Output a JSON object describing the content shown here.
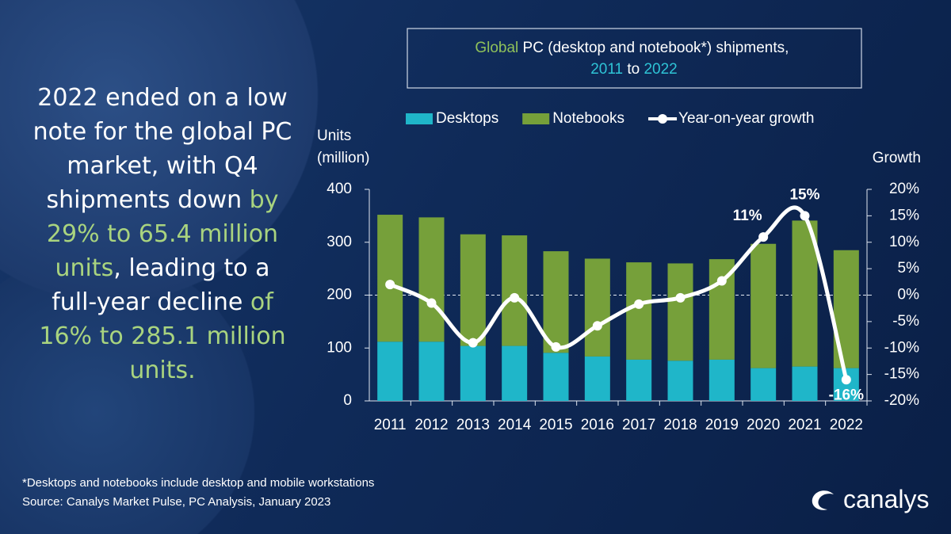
{
  "headline": [
    {
      "text": "2022 ended on a low note for the global PC market, with Q4 shipments down ",
      "color": "#ffffff"
    },
    {
      "text": "by 29% to 65.4 million units",
      "color": "#a9d47f"
    },
    {
      "text": ", leading to a full-year decline ",
      "color": "#ffffff"
    },
    {
      "text": "of 16% to 285.1 million units.",
      "color": "#a9d47f"
    }
  ],
  "footnotes": [
    "*Desktops and notebooks include desktop and mobile workstations",
    "Source: Canalys Market Pulse, PC Analysis, January 2023"
  ],
  "logo": "canalys",
  "chart_data": {
    "type": "stacked-bar-line",
    "title": [
      {
        "text": "Global",
        "color": "#8fc15a"
      },
      {
        "text": " PC (desktop and notebook*) shipments, ",
        "color": "#ffffff"
      },
      {
        "text": "2011",
        "color": "#2ec4d6"
      },
      {
        "text": " to ",
        "color": "#ffffff"
      },
      {
        "text": "2022",
        "color": "#2ec4d6"
      }
    ],
    "y_label": "Units (million)",
    "y2_label": "Growth",
    "categories": [
      "2011",
      "2012",
      "2013",
      "2014",
      "2015",
      "2016",
      "2017",
      "2018",
      "2019",
      "2020",
      "2021",
      "2022"
    ],
    "series": [
      {
        "name": "Desktops",
        "color": "#1fb6c9",
        "values": [
          112,
          112,
          104,
          104,
          91,
          84,
          78,
          76,
          78,
          62,
          65,
          62
        ]
      },
      {
        "name": "Notebooks",
        "color": "#76a03a",
        "values": [
          240,
          235,
          211,
          209,
          192,
          185,
          184,
          184,
          190,
          235,
          276,
          223
        ]
      },
      {
        "name": "Year-on-year growth",
        "color": "#ffffff",
        "axis": "y2",
        "values": [
          2,
          -1.5,
          -9,
          -0.5,
          -9.8,
          -5.8,
          -1.7,
          -0.5,
          2.7,
          11,
          15,
          -16
        ],
        "value_labels": [
          null,
          null,
          null,
          null,
          null,
          null,
          null,
          null,
          null,
          "11%",
          "15%",
          "-16%"
        ]
      }
    ],
    "ylim": [
      0,
      400
    ],
    "yticks": [
      0,
      100,
      200,
      300,
      400
    ],
    "y2lim": [
      -20,
      20
    ],
    "y2ticks": [
      {
        "value": -20,
        "label": "-20%"
      },
      {
        "value": -15,
        "label": "-15%"
      },
      {
        "value": -10,
        "label": "-10%"
      },
      {
        "value": -5,
        "label": "-5%"
      },
      {
        "value": 0,
        "label": "0%"
      },
      {
        "value": 5,
        "label": "5%"
      },
      {
        "value": 10,
        "label": "10%"
      },
      {
        "value": 15,
        "label": "15%"
      },
      {
        "value": 20,
        "label": "20%"
      }
    ],
    "zero_line": true
  }
}
